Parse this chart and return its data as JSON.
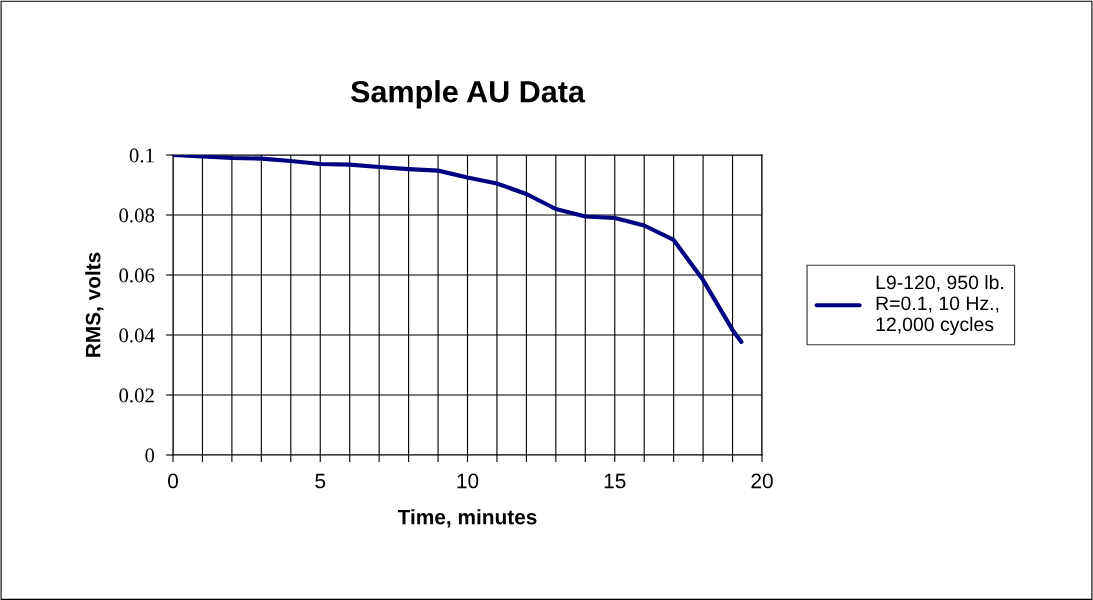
{
  "chart_data": {
    "type": "line",
    "title": "Sample AU Data",
    "xlabel": "Time, minutes",
    "ylabel": "RMS, volts",
    "series": [
      {
        "name": "L9-120, 950 lb.\nR=0.1, 10 Hz.,\n12,000 cycles",
        "color": "#000080",
        "x": [
          0,
          1,
          2,
          3,
          4,
          5,
          6,
          7,
          8,
          9,
          10,
          11,
          12,
          13,
          14,
          15,
          16,
          17,
          18,
          19,
          19.3
        ],
        "values": [
          0.1,
          0.0995,
          0.099,
          0.0988,
          0.098,
          0.097,
          0.0968,
          0.096,
          0.0953,
          0.0948,
          0.0925,
          0.0905,
          0.087,
          0.082,
          0.0795,
          0.079,
          0.0765,
          0.0717,
          0.0583,
          0.0417,
          0.0377
        ]
      }
    ],
    "xlim": [
      0,
      20
    ],
    "ylim": [
      0,
      0.1
    ],
    "xticks": [
      0,
      {
        "value": 1,
        "label": null
      },
      {
        "value": 2,
        "label": null
      },
      {
        "value": 3,
        "label": null
      },
      {
        "value": 4,
        "label": null
      },
      5,
      {
        "value": 6,
        "label": null
      },
      {
        "value": 7,
        "label": null
      },
      {
        "value": 8,
        "label": null
      },
      {
        "value": 9,
        "label": null
      },
      10,
      {
        "value": 11,
        "label": null
      },
      {
        "value": 12,
        "label": null
      },
      {
        "value": 13,
        "label": null
      },
      {
        "value": 14,
        "label": null
      },
      15,
      {
        "value": 16,
        "label": null
      },
      {
        "value": 17,
        "label": null
      },
      {
        "value": 18,
        "label": null
      },
      {
        "value": 19,
        "label": null
      },
      20
    ],
    "yticks": [
      0,
      0.02,
      0.04,
      0.06,
      0.08,
      0.1
    ],
    "grid": true,
    "legend": "right",
    "marker": "none",
    "line_style": "solid"
  }
}
